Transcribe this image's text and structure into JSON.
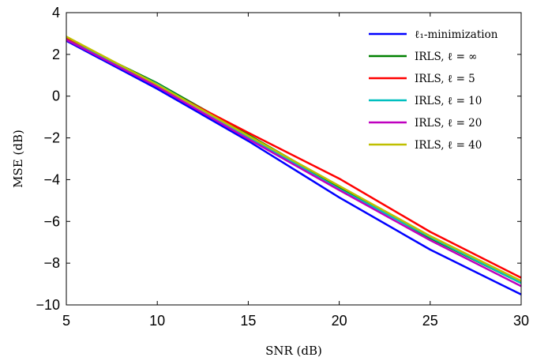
{
  "chart_data": {
    "type": "line",
    "xlabel": "SNR (dB)",
    "ylabel": "MSE (dB)",
    "xlim": [
      5,
      30
    ],
    "ylim": [
      -10,
      4
    ],
    "xticks": [
      5,
      10,
      15,
      20,
      25,
      30
    ],
    "yticks": [
      4,
      2,
      0,
      -2,
      -4,
      -6,
      -8,
      -10
    ],
    "xtick_labels": [
      "5",
      "10",
      "15",
      "20",
      "25",
      "30"
    ],
    "ytick_labels": [
      "4",
      "2",
      "0",
      "−2",
      "−4",
      "−6",
      "−8",
      "−10"
    ],
    "grid": false,
    "legend_position": "top-right",
    "x": [
      5,
      10,
      15,
      20,
      25,
      30
    ],
    "series": [
      {
        "name": "ℓ₁-minimization",
        "color": "#0000ff",
        "values": [
          2.65,
          0.35,
          -2.15,
          -4.85,
          -7.35,
          -9.5
        ]
      },
      {
        "name": "IRLS, ℓ = ∞",
        "color": "#008000",
        "values": [
          2.75,
          0.62,
          -1.85,
          -4.35,
          -6.8,
          -8.95
        ]
      },
      {
        "name": "IRLS, ℓ = 5",
        "color": "#ff0000",
        "values": [
          2.8,
          0.5,
          -1.75,
          -3.95,
          -6.5,
          -8.7
        ]
      },
      {
        "name": "IRLS, ℓ = 10",
        "color": "#00bfbf",
        "values": [
          2.7,
          0.58,
          -1.95,
          -4.45,
          -6.75,
          -8.95
        ]
      },
      {
        "name": "IRLS, ℓ = 20",
        "color": "#bf00bf",
        "values": [
          2.7,
          0.45,
          -2.05,
          -4.5,
          -6.9,
          -9.1
        ]
      },
      {
        "name": "IRLS, ℓ = 40",
        "color": "#bfbf00",
        "values": [
          2.85,
          0.55,
          -1.9,
          -4.3,
          -6.7,
          -8.85
        ]
      }
    ]
  }
}
